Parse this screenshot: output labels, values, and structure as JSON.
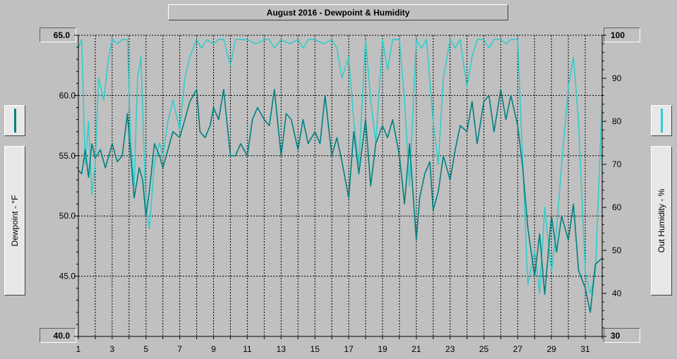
{
  "chart_data": {
    "type": "line",
    "title": "August 2016 - Dewpoint & Humidity",
    "ylabel_left": "Dewpoint - °F",
    "ylabel_right": "Out Humidity - %",
    "x_ticks": [
      "1",
      "3",
      "5",
      "7",
      "9",
      "11",
      "13",
      "15",
      "17",
      "19",
      "21",
      "23",
      "25",
      "27",
      "29",
      "31"
    ],
    "xlim": [
      1,
      32
    ],
    "ylim_left": [
      40.0,
      65.0
    ],
    "ylim_right": [
      30,
      100
    ],
    "y_ticks_left": [
      "45.0",
      "50.0",
      "55.0",
      "60.0"
    ],
    "y_ticks_right": [
      "40",
      "50",
      "60",
      "70",
      "80",
      "90"
    ],
    "scale_labels": {
      "left_top": "65.0",
      "left_bottom": "40.0",
      "right_top": "100",
      "right_bottom": "30"
    },
    "grid": true,
    "series": [
      {
        "axis": "left",
        "color": "#008080",
        "x": [
          1.0,
          1.2,
          1.4,
          1.6,
          1.8,
          2.0,
          2.3,
          2.6,
          3.0,
          3.3,
          3.6,
          3.9,
          4.1,
          4.3,
          4.6,
          4.8,
          5.0,
          5.2,
          5.5,
          5.8,
          6.0,
          6.3,
          6.6,
          7.0,
          7.3,
          7.6,
          8.0,
          8.2,
          8.5,
          8.8,
          9.0,
          9.3,
          9.6,
          10.0,
          10.3,
          10.6,
          11.0,
          11.3,
          11.6,
          12.0,
          12.3,
          12.6,
          13.0,
          13.3,
          13.6,
          14.0,
          14.3,
          14.6,
          15.0,
          15.3,
          15.6,
          16.0,
          16.3,
          16.6,
          17.0,
          17.3,
          17.6,
          18.0,
          18.3,
          18.6,
          19.0,
          19.3,
          19.6,
          20.0,
          20.3,
          20.6,
          21.0,
          21.2,
          21.5,
          21.8,
          22.0,
          22.3,
          22.6,
          23.0,
          23.3,
          23.6,
          24.0,
          24.3,
          24.6,
          25.0,
          25.3,
          25.6,
          26.0,
          26.3,
          26.6,
          27.0,
          27.3,
          27.6,
          28.0,
          28.3,
          28.6,
          29.0,
          29.3,
          29.6,
          30.0,
          30.3,
          30.6,
          31.0,
          31.3,
          31.6,
          32.0
        ],
        "values": [
          53.8,
          53.5,
          55.5,
          53.2,
          56.0,
          54.8,
          55.5,
          54.0,
          56.0,
          54.5,
          55.0,
          58.5,
          55.0,
          51.5,
          54.0,
          53.0,
          50.0,
          52.0,
          56.0,
          55.0,
          54.0,
          55.5,
          57.0,
          56.5,
          58.0,
          59.5,
          60.5,
          57.0,
          56.5,
          57.5,
          59.0,
          58.0,
          60.5,
          55.0,
          55.0,
          56.0,
          55.0,
          58.0,
          59.0,
          58.0,
          57.5,
          60.5,
          55.0,
          58.5,
          58.0,
          55.5,
          58.0,
          56.0,
          57.0,
          56.0,
          60.0,
          55.0,
          56.5,
          54.5,
          51.5,
          57.0,
          53.5,
          58.0,
          52.5,
          56.0,
          57.5,
          56.5,
          58.0,
          55.0,
          51.0,
          56.0,
          48.0,
          51.5,
          53.5,
          54.5,
          50.5,
          52.0,
          55.0,
          53.0,
          55.5,
          57.5,
          57.0,
          59.5,
          56.0,
          59.5,
          60.0,
          57.0,
          60.5,
          58.0,
          60.0,
          57.5,
          54.0,
          49.0,
          45.0,
          48.5,
          43.5,
          50.0,
          47.0,
          50.0,
          48.0,
          51.0,
          45.5,
          44.0,
          42.0,
          46.0,
          46.5
        ]
      },
      {
        "axis": "right",
        "color": "#33cccc",
        "x": [
          1.0,
          1.2,
          1.4,
          1.6,
          1.8,
          2.0,
          2.2,
          2.5,
          2.8,
          3.0,
          3.3,
          3.6,
          3.9,
          4.1,
          4.3,
          4.5,
          4.7,
          5.0,
          5.2,
          5.5,
          5.8,
          6.0,
          6.3,
          6.6,
          7.0,
          7.3,
          7.6,
          8.0,
          8.3,
          8.6,
          9.0,
          9.3,
          9.6,
          10.0,
          10.3,
          10.6,
          11.0,
          11.5,
          12.0,
          12.3,
          12.6,
          13.0,
          13.5,
          14.0,
          14.3,
          14.6,
          15.0,
          15.5,
          16.0,
          16.3,
          16.6,
          17.0,
          17.3,
          17.6,
          18.0,
          18.3,
          18.6,
          19.0,
          19.3,
          19.6,
          20.0,
          20.3,
          20.6,
          21.0,
          21.3,
          21.6,
          22.0,
          22.3,
          22.6,
          23.0,
          23.3,
          23.6,
          24.0,
          24.3,
          24.6,
          25.0,
          25.3,
          25.6,
          26.0,
          26.3,
          26.6,
          27.0,
          27.3,
          27.6,
          28.0,
          28.3,
          28.6,
          29.0,
          29.3,
          29.6,
          30.0,
          30.3,
          30.6,
          31.0,
          31.3,
          31.6,
          32.0
        ],
        "values": [
          97,
          99,
          70,
          80,
          63,
          70,
          90,
          85,
          95,
          99,
          98,
          99,
          99,
          75,
          65,
          90,
          95,
          60,
          55,
          70,
          75,
          72,
          80,
          85,
          78,
          90,
          95,
          99,
          97,
          99,
          98,
          99,
          99,
          93,
          99,
          99,
          99,
          98,
          99,
          99,
          97,
          99,
          98,
          99,
          97,
          99,
          99,
          98,
          99,
          97,
          90,
          95,
          80,
          70,
          99,
          85,
          75,
          99,
          92,
          99,
          99,
          85,
          65,
          99,
          97,
          99,
          80,
          70,
          90,
          99,
          97,
          99,
          88,
          95,
          99,
          99,
          97,
          99,
          99,
          98,
          99,
          99,
          70,
          42,
          50,
          40,
          60,
          45,
          55,
          70,
          88,
          95,
          80,
          45,
          40,
          45,
          85
        ]
      }
    ]
  }
}
